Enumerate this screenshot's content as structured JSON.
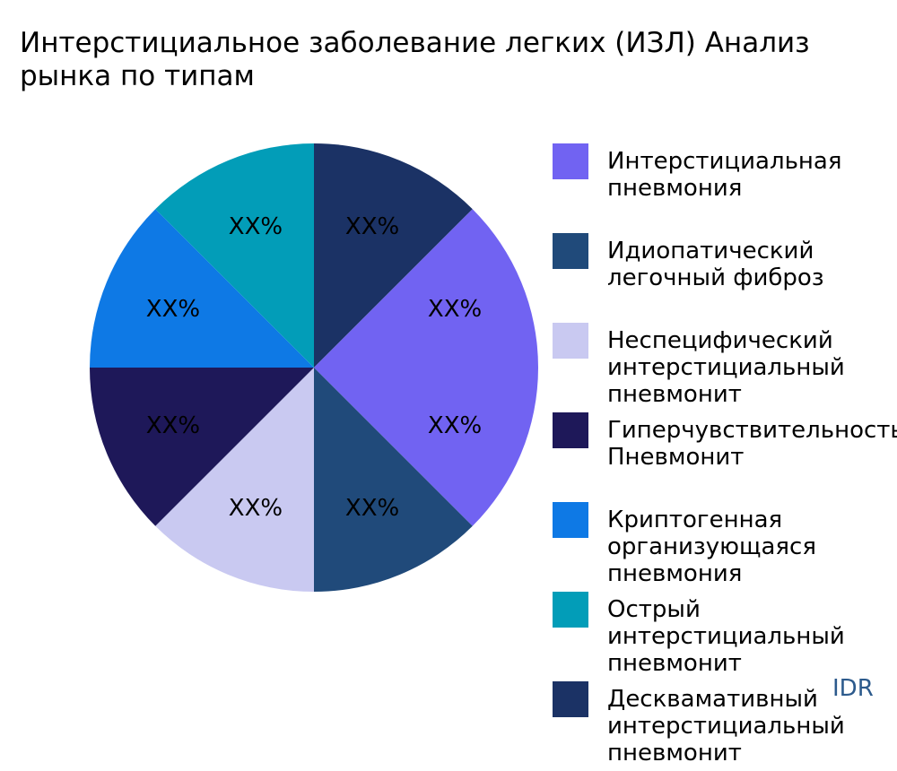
{
  "chart_data": {
    "type": "pie",
    "title": "Интерстициальное заболевание легких (ИЗЛ) Анализ рынка по типам",
    "slices": [
      {
        "name": "Интерстициальная\nпневмония",
        "value": 25,
        "label": "XX%",
        "color": "#7163F2"
      },
      {
        "name": "Идиопатический\nлегочный фиброз",
        "value": 12.5,
        "label": "XX%",
        "color": "#204A7A"
      },
      {
        "name": "Неспецифический\nинтерстициальный\nпневмонит",
        "value": 12.5,
        "label": "XX%",
        "color": "#C9C9F1"
      },
      {
        "name": "Гиперчувствительность\nПневмонит",
        "value": 12.5,
        "label": "XX%",
        "color": "#1E1859"
      },
      {
        "name": "Криптогенная\nорганизующаяся\nпневмония",
        "value": 12.5,
        "label": "XX%",
        "color": "#0E79E5"
      },
      {
        "name": "Острый\nинтерстициальный\nпневмонит",
        "value": 12.5,
        "label": "XX%",
        "color": "#029DB8"
      },
      {
        "name": "Десквамативный\nинтерстициальный\nпневмонит",
        "value": 12.5,
        "label": "XX%",
        "color": "#1B3265"
      }
    ],
    "legend_position": "right"
  },
  "watermark": "IDR"
}
